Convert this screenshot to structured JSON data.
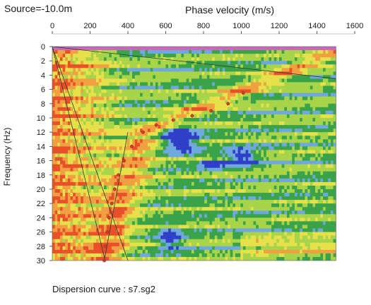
{
  "source_label": "Source=-10.0m",
  "caption": "Dispersion curve : s7.sg2",
  "chart_data": {
    "type": "heatmap",
    "title": "",
    "xlabel": "Phase velocity (m/s)",
    "ylabel": "Frequency (Hz)",
    "x_axis_position": "top",
    "xlim": [
      0,
      1600
    ],
    "x_data_extent": [
      0,
      1500
    ],
    "ylim": [
      0,
      30
    ],
    "y_inverted": true,
    "x_ticks": [
      0,
      200,
      400,
      600,
      800,
      1000,
      1200,
      1400,
      1600
    ],
    "y_ticks": [
      0,
      2,
      4,
      6,
      8,
      10,
      12,
      14,
      16,
      18,
      20,
      22,
      24,
      26,
      28,
      30
    ],
    "grid": false,
    "colormap": [
      "#2f3fc8",
      "#6fa8dc",
      "#3aa34a",
      "#a8d44a",
      "#e6e04a",
      "#f0a040",
      "#e8502a"
    ],
    "dispersion_picks": {
      "name": "",
      "color": "#d93a2a",
      "points": [
        {
          "velocity": 275,
          "frequency": 30
        },
        {
          "velocity": 280,
          "frequency": 28
        },
        {
          "velocity": 290,
          "frequency": 26
        },
        {
          "velocity": 300,
          "frequency": 24
        },
        {
          "velocity": 315,
          "frequency": 22
        },
        {
          "velocity": 330,
          "frequency": 20
        },
        {
          "velocity": 350,
          "frequency": 18
        },
        {
          "velocity": 380,
          "frequency": 16
        },
        {
          "velocity": 420,
          "frequency": 14
        },
        {
          "velocity": 480,
          "frequency": 12
        },
        {
          "velocity": 550,
          "frequency": 11
        },
        {
          "velocity": 640,
          "frequency": 10.3
        },
        {
          "velocity": 740,
          "frequency": 9.7
        },
        {
          "velocity": 840,
          "frequency": 9
        },
        {
          "velocity": 930,
          "frequency": 8
        },
        {
          "velocity": 1010,
          "frequency": 6.5
        }
      ]
    },
    "reference_lines": [
      {
        "from": {
          "velocity": 0,
          "frequency": 0
        },
        "to": {
          "velocity": 400,
          "frequency": 30
        }
      },
      {
        "from": {
          "velocity": 0,
          "frequency": 0
        },
        "to": {
          "velocity": 280,
          "frequency": 30
        }
      },
      {
        "from": {
          "velocity": 0,
          "frequency": 0
        },
        "to": {
          "velocity": 1500,
          "frequency": 4.5
        }
      },
      {
        "from": {
          "velocity": 400,
          "frequency": 12
        },
        "to": {
          "velocity": 275,
          "frequency": 30
        }
      }
    ]
  }
}
